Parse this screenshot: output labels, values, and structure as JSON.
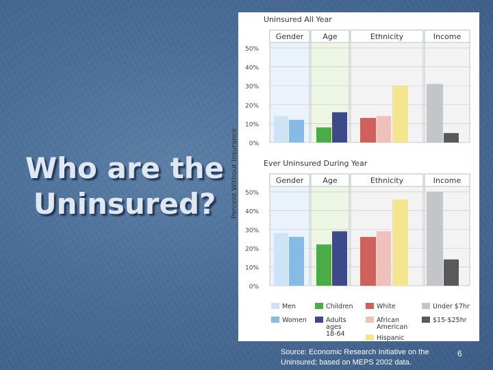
{
  "slide": {
    "title_line1": "Who are the",
    "title_line2": "Uninsured?",
    "source_line1": "Source: Economic Research Initiative on the",
    "source_line2": "Uninsured; based on MEPS 2002 data.",
    "page_number": "6"
  },
  "chart_data": {
    "type": "bar",
    "ylabel": "Percent Without Insurance",
    "groups": [
      "Gender",
      "Age",
      "Ethnicity",
      "Income"
    ],
    "categories": [
      "Men",
      "Women",
      "Children",
      "Adults ages 18-64",
      "White",
      "African American",
      "Hispanic",
      "Under $7hr",
      "$15-$25hr"
    ],
    "colors": [
      "#cfe3f6",
      "#86bbe6",
      "#49ac47",
      "#3c4a8c",
      "#d0605c",
      "#eec2bb",
      "#f5e58f",
      "#c4c5c8",
      "#58595b"
    ],
    "yticks": [
      "0%",
      "10%",
      "20%",
      "30%",
      "40%",
      "50%"
    ],
    "ylim": [
      0,
      50
    ],
    "charts": [
      {
        "title": "Uninsured All Year",
        "values": [
          {
            "v": 14,
            "g": 0
          },
          {
            "v": 12,
            "g": 0
          },
          {
            "v": 8,
            "g": 1
          },
          {
            "v": 16,
            "g": 1
          },
          {
            "v": 13,
            "g": 2
          },
          {
            "v": 14,
            "g": 2
          },
          {
            "v": 30,
            "g": 2
          },
          {
            "v": 31,
            "g": 3
          },
          {
            "v": 5,
            "g": 3
          }
        ]
      },
      {
        "title": "Ever Uninsured During Year",
        "values": [
          {
            "v": 28,
            "g": 0
          },
          {
            "v": 26,
            "g": 0
          },
          {
            "v": 22,
            "g": 1
          },
          {
            "v": 29,
            "g": 1
          },
          {
            "v": 26,
            "g": 2
          },
          {
            "v": 29,
            "g": 2
          },
          {
            "v": 46,
            "g": 2
          },
          {
            "v": 50,
            "g": 3
          },
          {
            "v": 14,
            "g": 3
          }
        ]
      }
    ],
    "legend": [
      {
        "label": "Men",
        "color": "#cfe3f6"
      },
      {
        "label": "Women",
        "color": "#86bbe6"
      },
      {
        "label": "Children",
        "color": "#49ac47"
      },
      {
        "label": "Adults ages 18-64",
        "color": "#3c4a8c"
      },
      {
        "label": "White",
        "color": "#d0605c"
      },
      {
        "label": "African American",
        "color": "#eec2bb"
      },
      {
        "label": "Hispanic",
        "color": "#f5e58f"
      },
      {
        "label": "Under $7hr",
        "color": "#c4c5c8"
      },
      {
        "label": "$15-$25hr",
        "color": "#58595b"
      }
    ]
  }
}
